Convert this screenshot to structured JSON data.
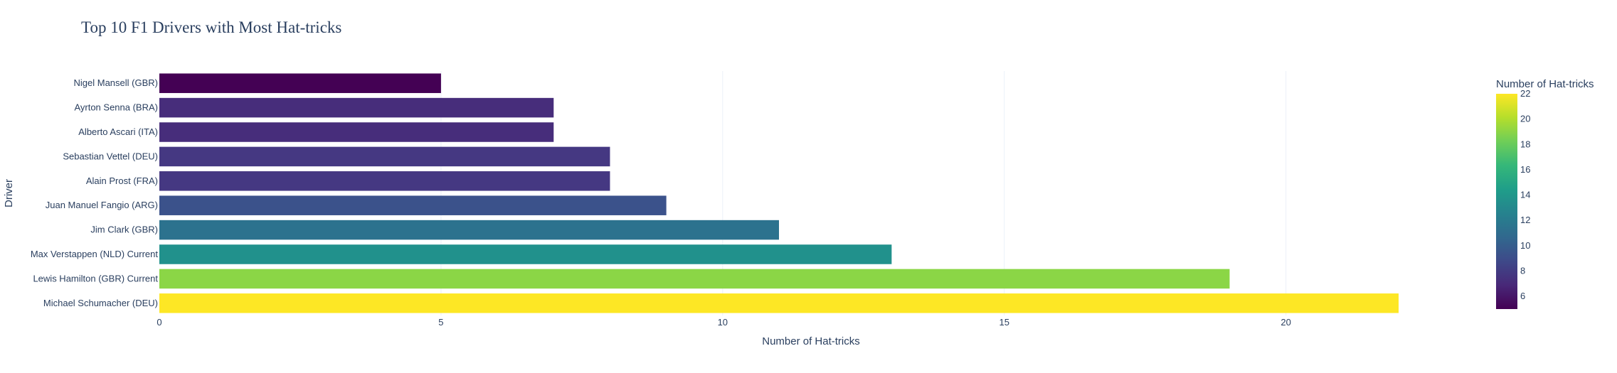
{
  "chart_data": {
    "type": "bar",
    "orientation": "horizontal",
    "title": "Top 10 F1 Drivers with Most Hat-tricks",
    "xlabel": "Number of Hat-tricks",
    "ylabel": "Driver",
    "xlim": [
      0,
      22
    ],
    "xticks": [
      0,
      5,
      10,
      15,
      20
    ],
    "grid": true,
    "categories": [
      "Michael Schumacher (DEU)",
      "Lewis Hamilton (GBR) Current",
      "Max Verstappen (NLD) Current",
      "Jim Clark (GBR)",
      "Juan Manuel Fangio (ARG)",
      "Alain Prost (FRA)",
      "Sebastian Vettel (DEU)",
      "Alberto Ascari (ITA)",
      "Ayrton Senna (BRA)",
      "Nigel Mansell (GBR)"
    ],
    "values": [
      22,
      19,
      13,
      11,
      9,
      8,
      8,
      7,
      7,
      5
    ],
    "colors": [
      "#fde725",
      "#8bd646",
      "#21918c",
      "#2c728e",
      "#3b528b",
      "#453882",
      "#453882",
      "#472d7b",
      "#472d7b",
      "#440154"
    ],
    "colorbar": {
      "title": "Number of Hat-tricks",
      "colorscale": "Viridis",
      "range": [
        5,
        22
      ],
      "ticks": [
        6,
        8,
        10,
        12,
        14,
        16,
        18,
        20,
        22
      ]
    }
  }
}
